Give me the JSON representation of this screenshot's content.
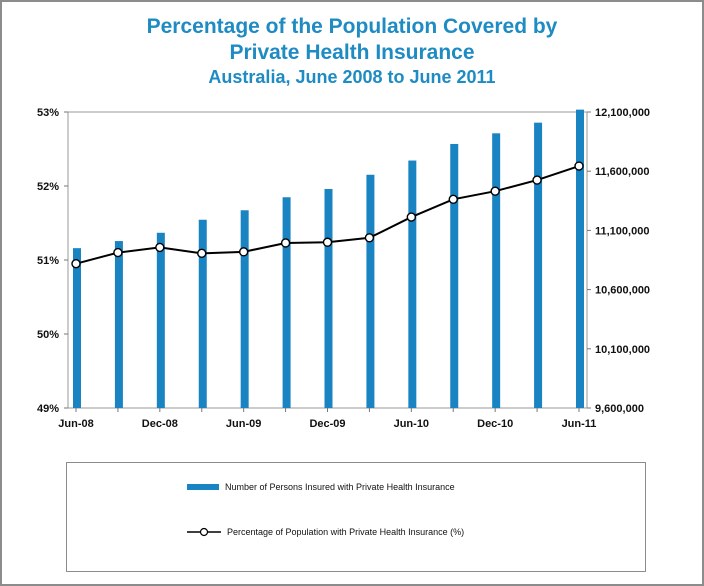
{
  "chart_data": {
    "type": "bar+line",
    "title": "Percentage of the Population Covered by",
    "title_line2": "Private Health Insurance",
    "subtitle": "Australia, June 2008 to June 2011",
    "x_tick_labels": [
      "Jun-08",
      "Dec-08",
      "Jun-09",
      "Dec-09",
      "Jun-10",
      "Dec-10",
      "Jun-11"
    ],
    "periods": [
      "Jun-08",
      "Sep-08",
      "Dec-08",
      "Mar-09",
      "Jun-09",
      "Sep-09",
      "Dec-09",
      "Mar-10",
      "Jun-10",
      "Sep-10",
      "Dec-10",
      "Mar-11",
      "Jun-11"
    ],
    "left_axis": {
      "min": 49,
      "max": 53,
      "ticks": [
        "49%",
        "50%",
        "51%",
        "52%",
        "53%"
      ]
    },
    "right_axis": {
      "min": 9600000,
      "max": 12100000,
      "ticks": [
        "9,600,000",
        "10,100,000",
        "10,600,000",
        "11,100,000",
        "11,600,000",
        "12,100,000"
      ]
    },
    "series": [
      {
        "name": "Number of Persons Insured with Private Health Insurance",
        "kind": "bar",
        "axis": "right",
        "color": "#1a84c3",
        "values": [
          10950000,
          11010000,
          11080000,
          11190000,
          11270000,
          11380000,
          11450000,
          11570000,
          11690000,
          11830000,
          11920000,
          12010000,
          12120000
        ]
      },
      {
        "name": "Percentage of Population with Private Health Insurance (%)",
        "kind": "line",
        "axis": "left",
        "color": "#000000",
        "values": [
          50.95,
          51.1,
          51.17,
          51.09,
          51.11,
          51.23,
          51.24,
          51.3,
          51.58,
          51.82,
          51.93,
          52.08,
          52.27
        ]
      }
    ]
  }
}
